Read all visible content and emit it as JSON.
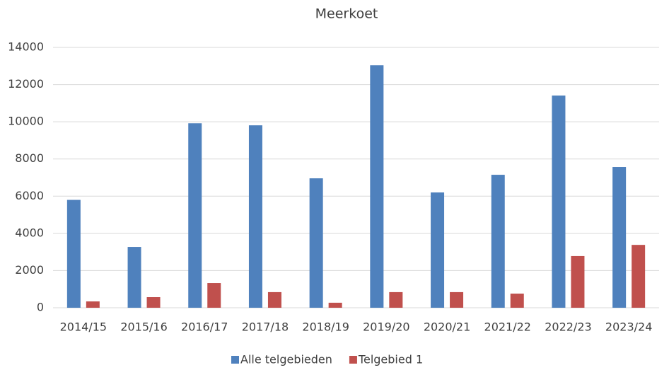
{
  "chart_data": {
    "type": "bar",
    "title": "Meerkoet",
    "categories": [
      "2014/15",
      "2015/16",
      "2016/17",
      "2017/18",
      "2018/19",
      "2019/20",
      "2020/21",
      "2021/22",
      "2022/23",
      "2023/24"
    ],
    "series": [
      {
        "name": "Alle telgebieden",
        "color": "#4f81bd",
        "values": [
          5800,
          3270,
          9920,
          9810,
          6960,
          13040,
          6200,
          7150,
          11410,
          7570
        ]
      },
      {
        "name": "Telgebied 1",
        "color": "#c0504d",
        "values": [
          340,
          570,
          1330,
          840,
          270,
          840,
          840,
          760,
          2780,
          3380
        ]
      }
    ],
    "ylim": [
      0,
      14000
    ],
    "yticks": [
      0,
      2000,
      4000,
      6000,
      8000,
      10000,
      12000,
      14000
    ],
    "grid": true,
    "legend": "bottom"
  }
}
